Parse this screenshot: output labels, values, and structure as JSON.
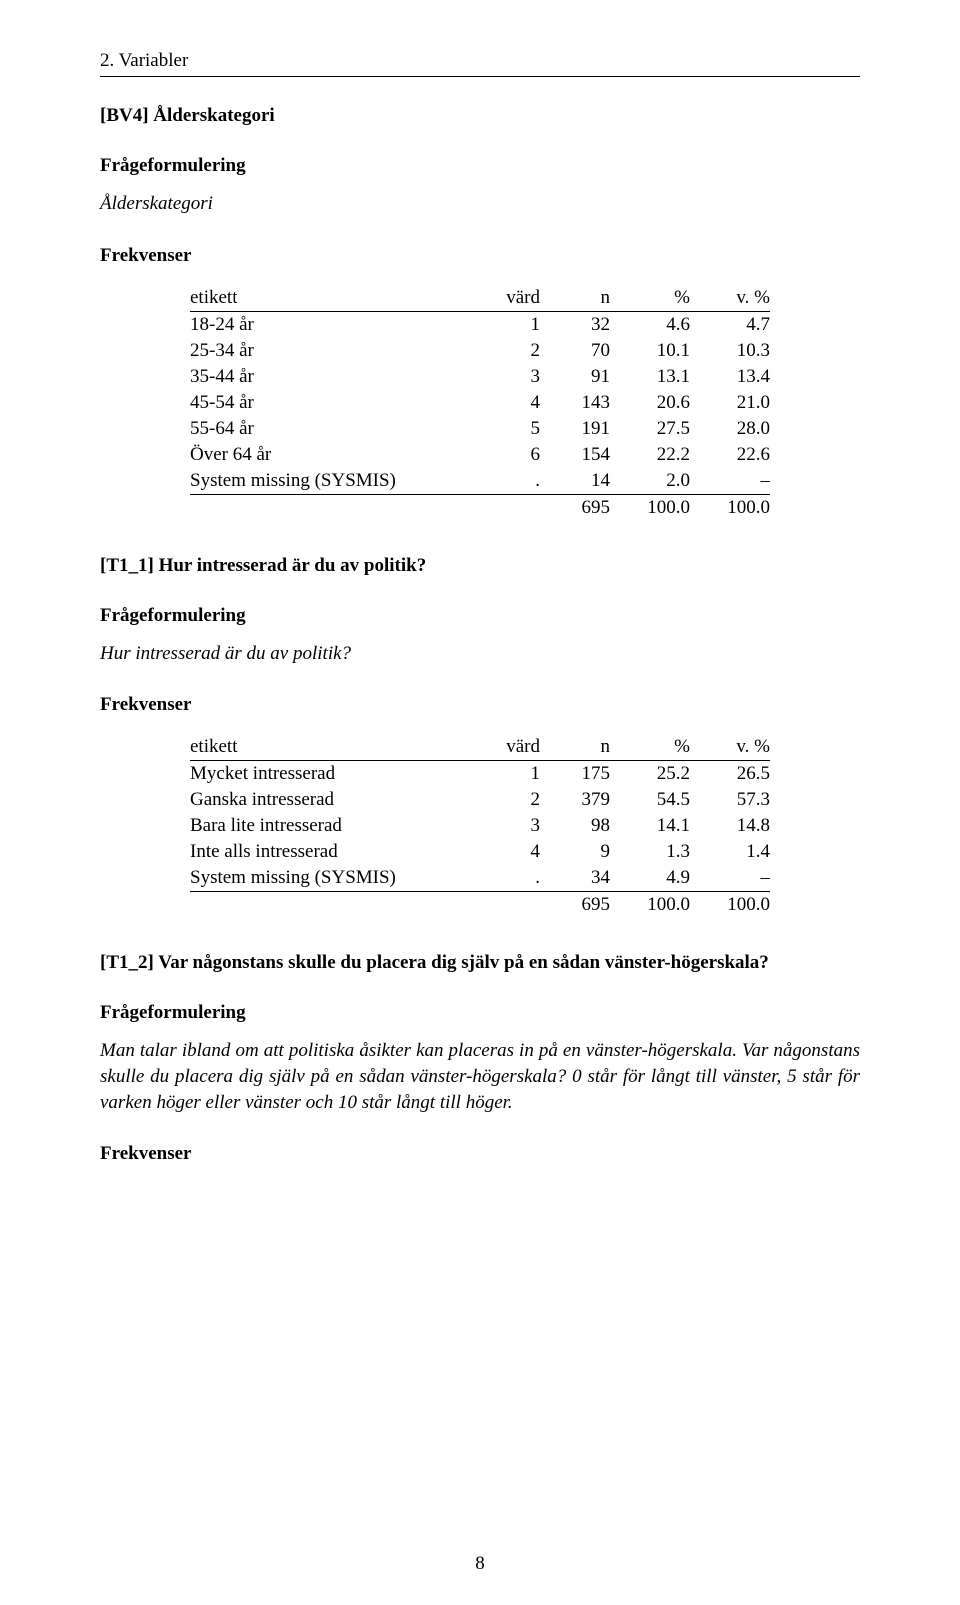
{
  "section_header": "2. Variabler",
  "page_number": "8",
  "labels": {
    "frageformulering": "Frågeformulering",
    "frekvenser": "Frekvenser",
    "etikett": "etikett",
    "vard": "värd",
    "n": "n",
    "pct": "%",
    "vpct": "v. %"
  },
  "var1": {
    "title": "[BV4] Ålderskategori",
    "question": "Ålderskategori",
    "columns": {
      "label_width": "290px"
    },
    "rows": [
      {
        "etikett": "18-24 år",
        "vard": "1",
        "n": "32",
        "pct": "4.6",
        "vpct": "4.7"
      },
      {
        "etikett": "25-34 år",
        "vard": "2",
        "n": "70",
        "pct": "10.1",
        "vpct": "10.3"
      },
      {
        "etikett": "35-44 år",
        "vard": "3",
        "n": "91",
        "pct": "13.1",
        "vpct": "13.4"
      },
      {
        "etikett": "45-54 år",
        "vard": "4",
        "n": "143",
        "pct": "20.6",
        "vpct": "21.0"
      },
      {
        "etikett": "55-64 år",
        "vard": "5",
        "n": "191",
        "pct": "27.5",
        "vpct": "28.0"
      },
      {
        "etikett": "Över 64 år",
        "vard": "6",
        "n": "154",
        "pct": "22.2",
        "vpct": "22.6"
      },
      {
        "etikett": "System missing (SYSMIS)",
        "vard": ".",
        "n": "14",
        "pct": "2.0",
        "vpct": "–"
      }
    ],
    "total": {
      "etikett": "",
      "vard": "",
      "n": "695",
      "pct": "100.0",
      "vpct": "100.0"
    }
  },
  "var2": {
    "title": "[T1_1] Hur intresserad är du av politik?",
    "question": "Hur intresserad är du av politik?",
    "rows": [
      {
        "etikett": "Mycket intresserad",
        "vard": "1",
        "n": "175",
        "pct": "25.2",
        "vpct": "26.5"
      },
      {
        "etikett": "Ganska intresserad",
        "vard": "2",
        "n": "379",
        "pct": "54.5",
        "vpct": "57.3"
      },
      {
        "etikett": "Bara lite intresserad",
        "vard": "3",
        "n": "98",
        "pct": "14.1",
        "vpct": "14.8"
      },
      {
        "etikett": "Inte alls intresserad",
        "vard": "4",
        "n": "9",
        "pct": "1.3",
        "vpct": "1.4"
      },
      {
        "etikett": "System missing (SYSMIS)",
        "vard": ".",
        "n": "34",
        "pct": "4.9",
        "vpct": "–"
      }
    ],
    "total": {
      "etikett": "",
      "vard": "",
      "n": "695",
      "pct": "100.0",
      "vpct": "100.0"
    }
  },
  "var3": {
    "title": "[T1_2] Var någonstans skulle du placera dig själv på en sådan vänster-högerskala?",
    "question": "Man talar ibland om att politiska åsikter kan placeras in på en vänster-högerskala. Var någonstans skulle du placera dig själv på en sådan vänster-högerskala? 0 står för långt till vänster, 5 står för varken höger eller vänster och 10 står långt till höger."
  }
}
